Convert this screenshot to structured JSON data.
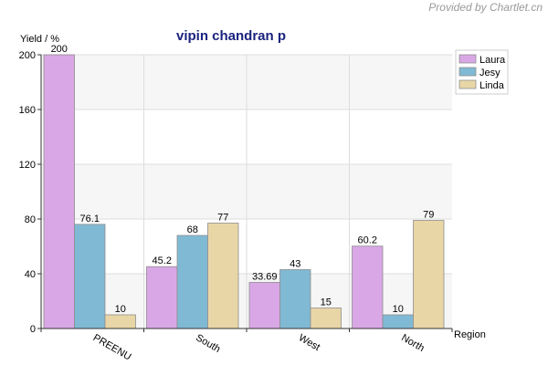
{
  "credit": "Provided by Chartlet.cn",
  "chart_data": {
    "type": "bar",
    "title": "vipin chandran p",
    "ylabel": "Yield / %",
    "xlabel": "Region",
    "categories": [
      "PREENU",
      "South",
      "West",
      "North"
    ],
    "series": [
      {
        "name": "Laura",
        "color": "#d9a7e6",
        "values": [
          200,
          45.2,
          33.69,
          60.2
        ]
      },
      {
        "name": "Jesy",
        "color": "#80b9d4",
        "values": [
          76.1,
          68,
          43,
          10
        ]
      },
      {
        "name": "Linda",
        "color": "#e8d6a6",
        "values": [
          10,
          77,
          15,
          79
        ]
      }
    ],
    "ylim": [
      0,
      200
    ],
    "yticks": [
      0,
      40,
      80,
      120,
      160,
      200
    ],
    "grid": true,
    "legend_position": "right"
  }
}
